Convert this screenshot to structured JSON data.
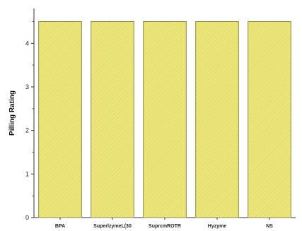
{
  "chart_data": {
    "type": "bar",
    "title": "",
    "xlabel": "",
    "ylabel": "Pilling Rating",
    "categories": [
      "BPA",
      "SuperlzymeL(30",
      "SuprcmROTR",
      "Hyzyme",
      "NS"
    ],
    "series": [
      {
        "values": [
          4.5,
          4.5,
          4.5,
          4.5,
          4.5
        ]
      }
    ],
    "ylim": [
      0,
      4.8
    ],
    "yticks": [
      0,
      1,
      2,
      3,
      4
    ],
    "grid": false,
    "legend": "none",
    "colors": {
      "bar_fill": "#ece57a",
      "bar_edge": "#8c8a4a",
      "axis": "#333333"
    }
  }
}
